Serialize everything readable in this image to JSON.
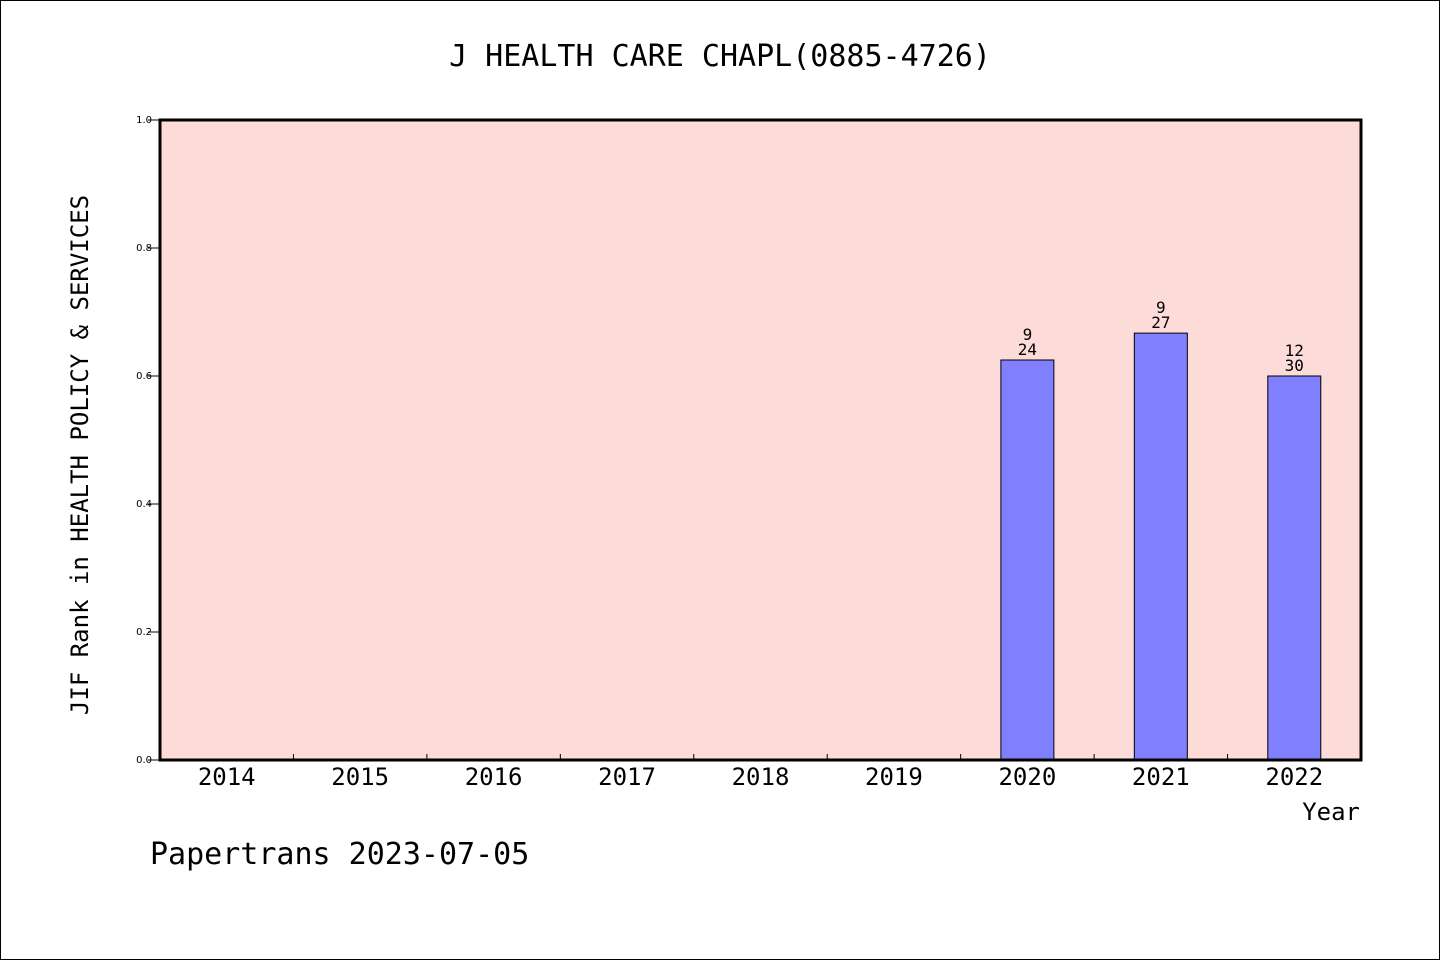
{
  "chart_data": {
    "type": "bar",
    "title": "J HEALTH CARE CHAPL(0885-4726)",
    "xlabel": "Year",
    "ylabel": "JIF Rank in HEALTH POLICY & SERVICES",
    "categories": [
      "2014",
      "2015",
      "2016",
      "2017",
      "2018",
      "2019",
      "2020",
      "2021",
      "2022"
    ],
    "values": [
      null,
      null,
      null,
      null,
      null,
      null,
      0.625,
      0.667,
      0.6
    ],
    "rank_labels": [
      null,
      null,
      null,
      null,
      null,
      null,
      "9",
      "9",
      "12"
    ],
    "total_labels": [
      null,
      null,
      null,
      null,
      null,
      null,
      "24",
      "27",
      "30"
    ],
    "ylim": [
      0,
      1.0
    ],
    "yticks": [
      "0.0",
      "0.2",
      "0.4",
      "0.6",
      "0.8",
      "1.0"
    ],
    "grid": false,
    "plot_background": "#fddbd8",
    "bar_color": "#8080ff"
  },
  "footer": "Papertrans 2023-07-05"
}
